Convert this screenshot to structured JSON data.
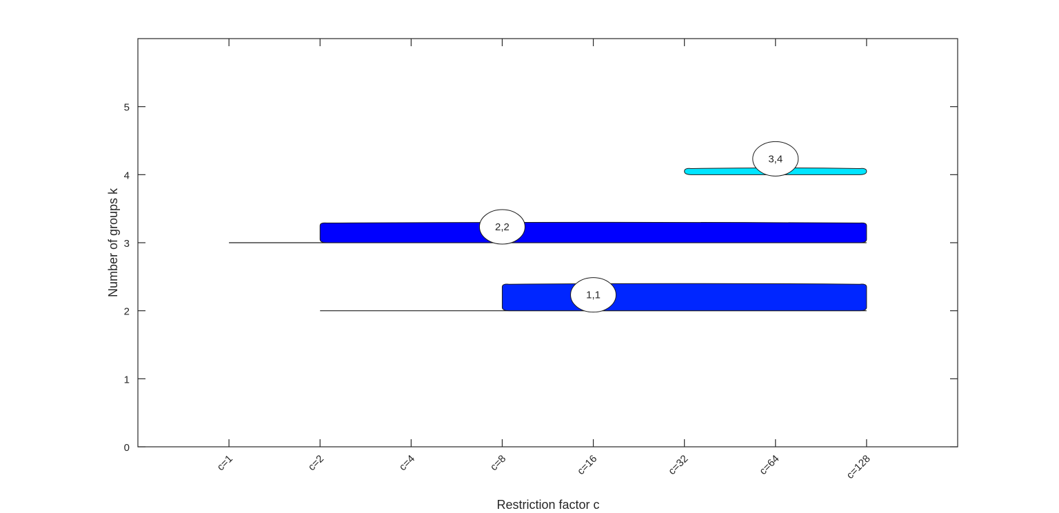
{
  "chart_data": {
    "type": "bar",
    "orientation": "horizontal",
    "title": "",
    "xlabel": "Restriction factor c",
    "ylabel": "Number of groups k",
    "categories": [
      "c=1",
      "c=2",
      "c=4",
      "c=8",
      "c=16",
      "c=32",
      "c=64",
      "c=128"
    ],
    "yticks": [
      "0",
      "1",
      "2",
      "3",
      "4",
      "5"
    ],
    "ylim": [
      0,
      6
    ],
    "xlim": [
      0,
      9
    ],
    "grid": false,
    "legend": null,
    "stability_lines": [
      {
        "k": 2,
        "from": "c=2",
        "to": "c=128"
      },
      {
        "k": 3,
        "from": "c=1",
        "to": "c=128"
      }
    ],
    "series": [
      {
        "name": "1,1",
        "k": 2,
        "from": "c=8",
        "to": "c=128",
        "label_at": "c=16",
        "color": "#0026ff",
        "thickness": 0.4
      },
      {
        "name": "2,2",
        "k": 3,
        "from": "c=2",
        "to": "c=128",
        "label_at": "c=8",
        "color": "#0000ff",
        "thickness": 0.3
      },
      {
        "name": "3,4",
        "k": 4,
        "from": "c=32",
        "to": "c=128",
        "label_at": "c=64",
        "color": "#00e5ff",
        "thickness": 0.1
      }
    ]
  },
  "axes": {
    "xlabel": "Restriction factor c",
    "ylabel": "Number of groups k"
  },
  "colors": {
    "axis": "#262626",
    "bar_dark_blue": "#0000ff",
    "bar_blue": "#0026ff",
    "bar_cyan": "#00e5ff"
  }
}
